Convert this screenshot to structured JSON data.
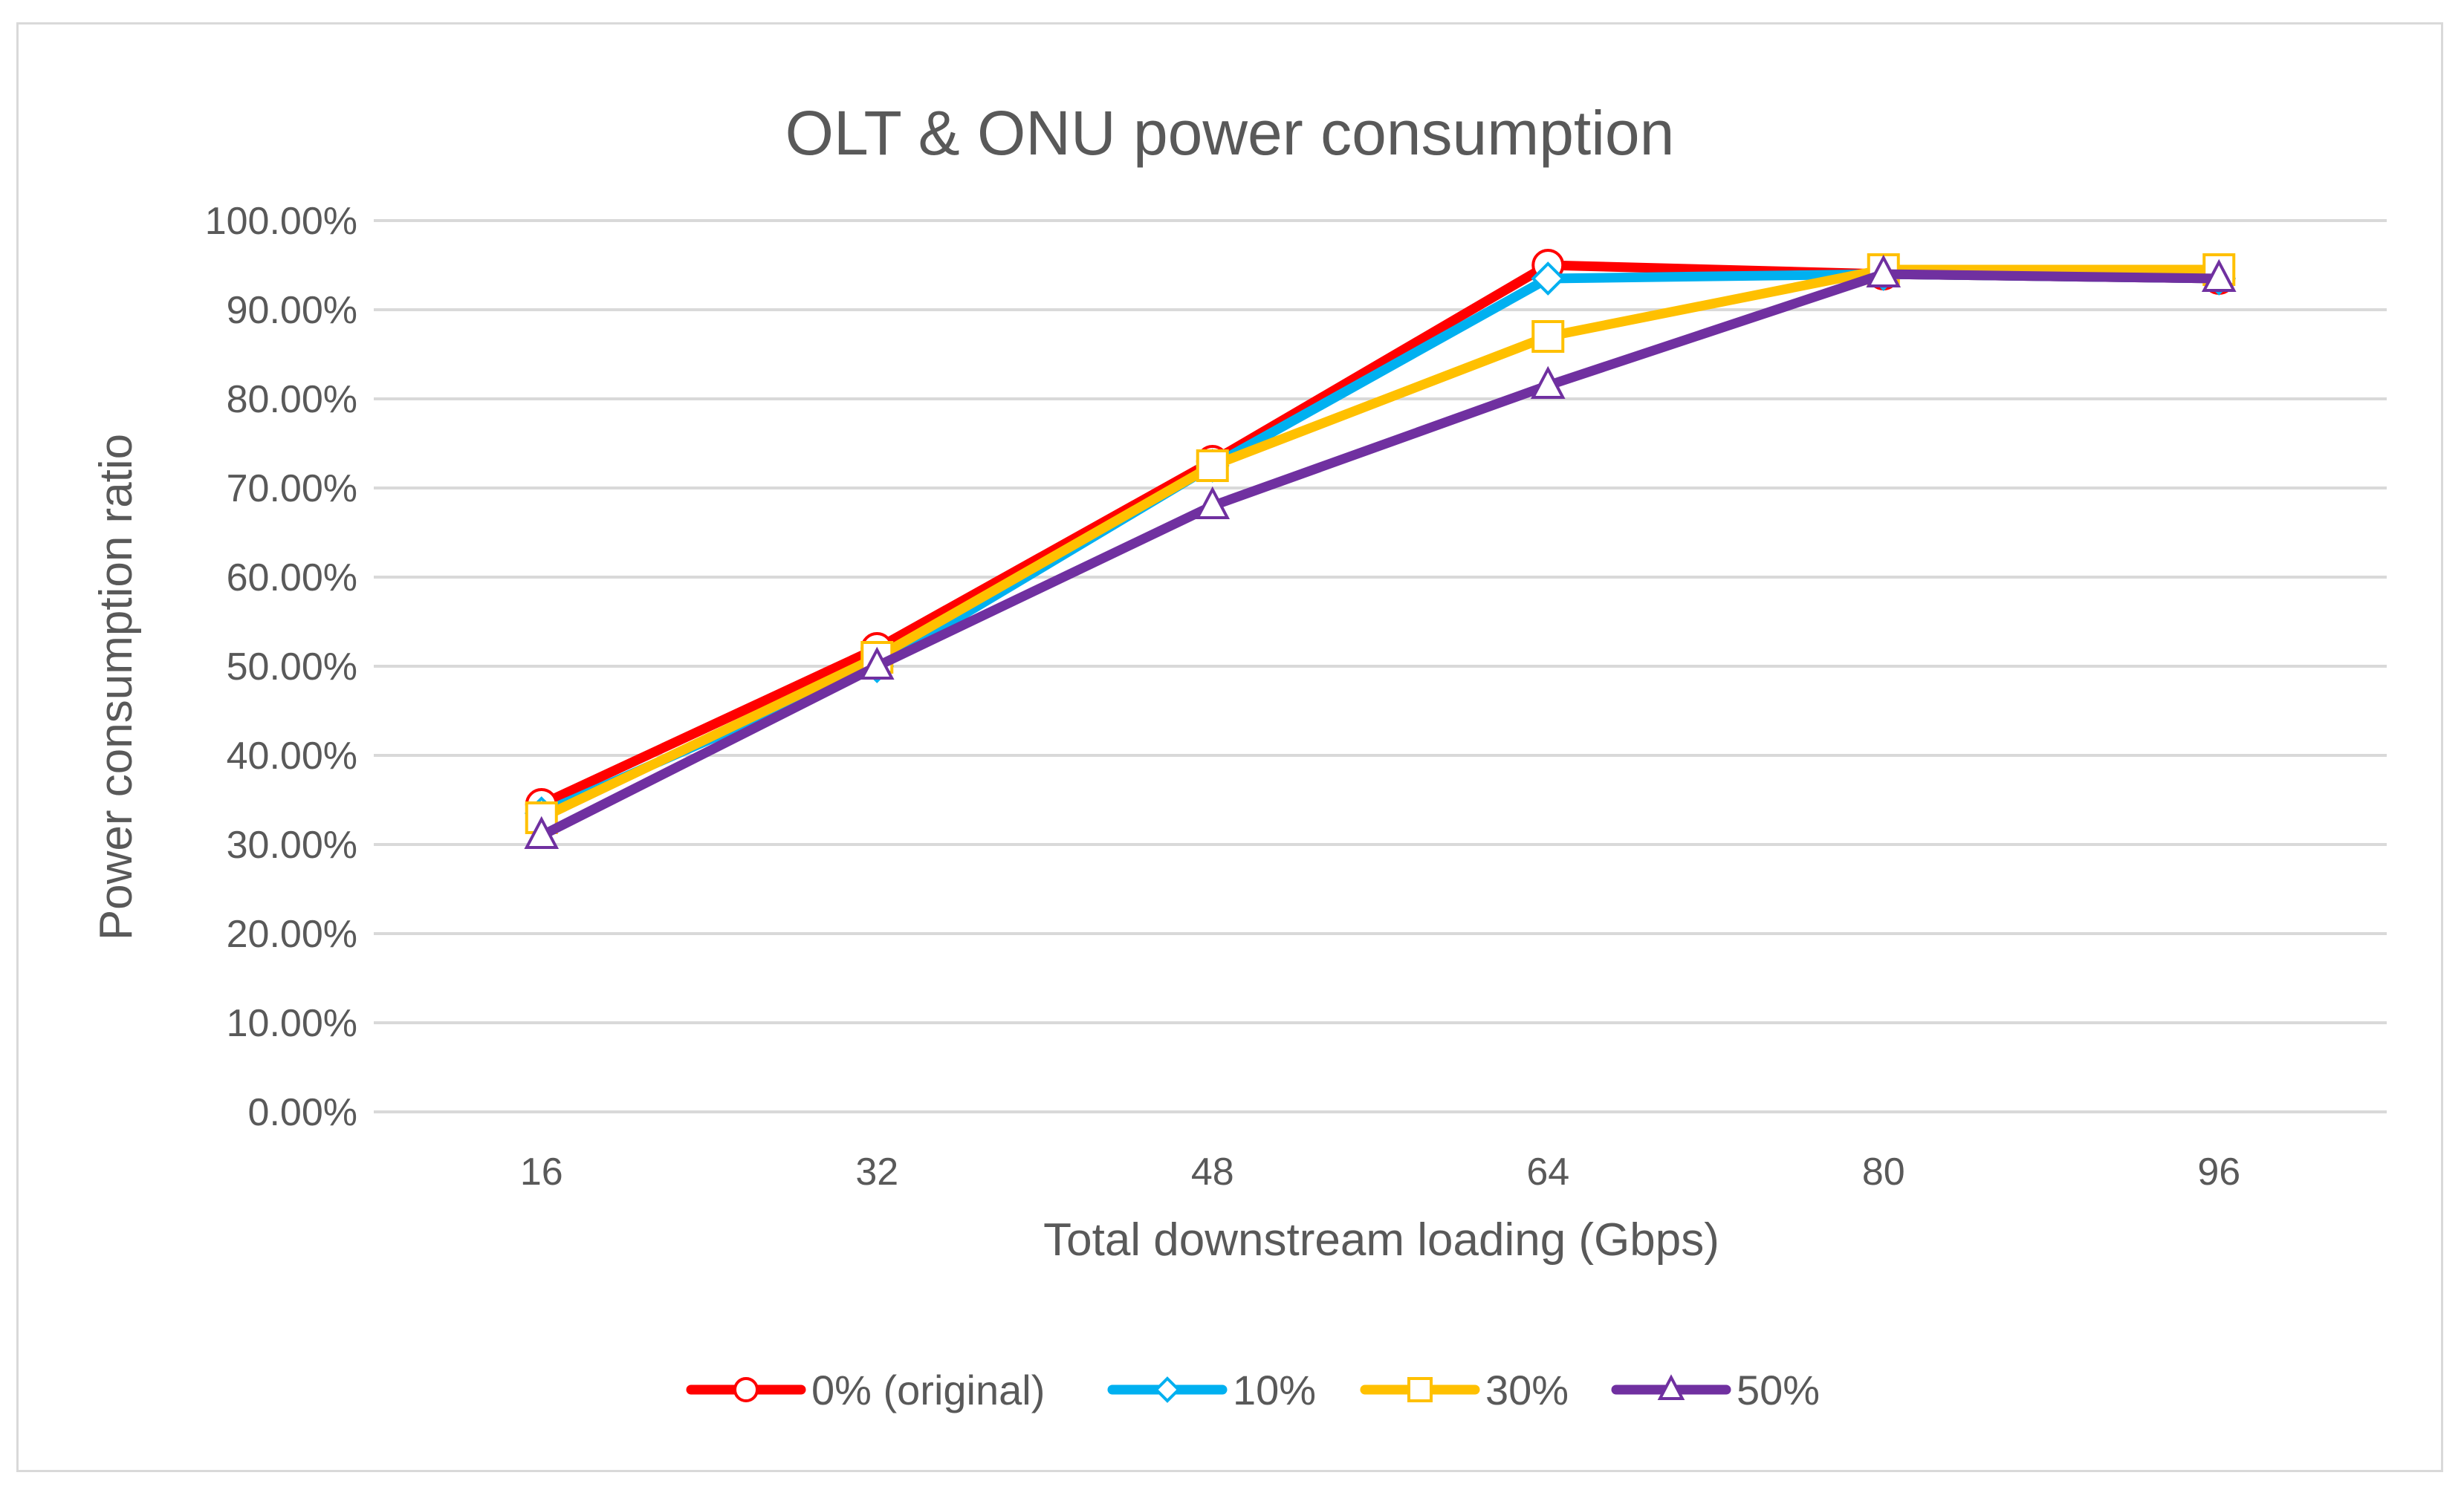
{
  "chart_data": {
    "type": "line",
    "title": "OLT & ONU power consumption",
    "xlabel": "Total downstream loading (Gbps)",
    "ylabel": "Power consumption ratio",
    "categories": [
      "16",
      "32",
      "48",
      "64",
      "80",
      "96"
    ],
    "ylim": [
      0,
      1
    ],
    "yticks": [
      0,
      0.1,
      0.2,
      0.3,
      0.4,
      0.5,
      0.6,
      0.7,
      0.8,
      0.9,
      1.0
    ],
    "ytick_labels": [
      "0.00%",
      "10.00%",
      "20.00%",
      "30.00%",
      "40.00%",
      "50.00%",
      "60.00%",
      "70.00%",
      "80.00%",
      "90.00%",
      "100.00%"
    ],
    "grid": true,
    "legend_position": "bottom",
    "series": [
      {
        "name": "0% (original)",
        "color": "#ff0000",
        "marker": "circle",
        "values": [
          0.345,
          0.52,
          0.73,
          0.95,
          0.94,
          0.935
        ]
      },
      {
        "name": "10%",
        "color": "#00b0f0",
        "marker": "diamond",
        "values": [
          0.335,
          0.5,
          0.725,
          0.935,
          0.94,
          0.935
        ]
      },
      {
        "name": "30%",
        "color": "#ffc000",
        "marker": "square",
        "values": [
          0.33,
          0.51,
          0.725,
          0.87,
          0.945,
          0.945
        ]
      },
      {
        "name": "50%",
        "color": "#7030a0",
        "marker": "triangle",
        "values": [
          0.31,
          0.5,
          0.68,
          0.815,
          0.94,
          0.935
        ]
      }
    ]
  }
}
